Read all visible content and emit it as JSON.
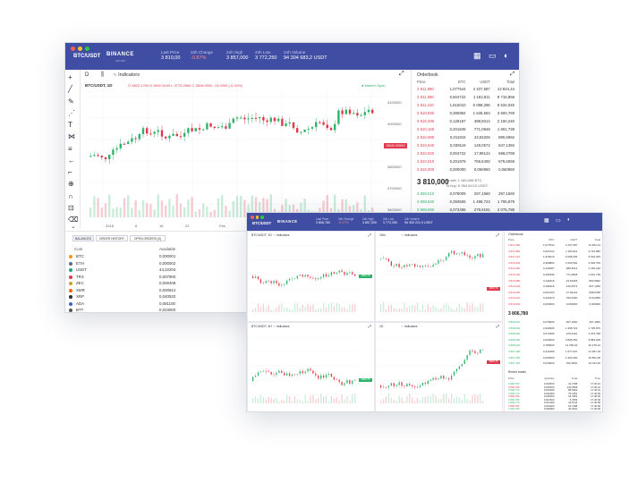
{
  "back": {
    "pair": "BTC/USDT",
    "brand": "BINANCE",
    "brand_sub": "API KEY",
    "stats": [
      {
        "label": "Last Price",
        "value": "3 810,00",
        "neg": false
      },
      {
        "label": "24h Change",
        "value": "-0.87%",
        "neg": true
      },
      {
        "label": "24h High",
        "value": "3 857,000",
        "neg": false
      },
      {
        "label": "24h Low",
        "value": "3 772,250",
        "neg": false
      },
      {
        "label": "24h Volume",
        "value": "94 304 683,2 USDT",
        "neg": false
      }
    ],
    "symbol": "BTC/USDT, 1D",
    "ohlc": "O 3822.1760 H 3841.5100 L 3775.2560 C 3818.0000 -13.0000 (-0.34%)",
    "indicators": "Indicators",
    "interval": "D",
    "market_open": "Market Open",
    "price_axis": [
      "4100000",
      "4000000",
      "3900000",
      "3800000",
      "3700000",
      "3600000"
    ],
    "price_tag": "3818.00000",
    "time_axis": [
      "2018",
      "8",
      "16",
      "22",
      "Feb",
      "5"
    ],
    "orderbook_title": "Orderbook",
    "ob_headers": [
      "Price",
      "BTC",
      "USDT",
      "Total"
    ],
    "asks": [
      [
        "3 811,990",
        "1,077544",
        "4 107,587",
        "13 824,44"
      ],
      [
        "3 811,580",
        "0,604722",
        "1 182,811",
        "9 716,856"
      ],
      [
        "3 811,210",
        "1,615010",
        "6 098,296",
        "8 534,045"
      ],
      [
        "3 810,930",
        "0,380884",
        "1 636,594",
        "3 600,769"
      ],
      [
        "3 810,490",
        "0,128187",
        "488,5014",
        "2 150,240"
      ],
      [
        "3 810,160",
        "0,201845",
        "771,0848",
        "1 661,739"
      ],
      [
        "3 810,080",
        "0,011815",
        "43,53325",
        "890,6892"
      ],
      [
        "3 810,040",
        "0,039119",
        "149,0572",
        "847,1360"
      ],
      [
        "3 810,020",
        "0,004722",
        "17,99124",
        "698,0788"
      ],
      [
        "3 810,010",
        "0,201979",
        "769,5400",
        "679,6059"
      ],
      [
        "3 810,000",
        "0,000000",
        "0,060960",
        "0,060960"
      ]
    ],
    "mid_price": "3 810,000",
    "mid_sub1": "To sell: 1 180,058 BTC",
    "mid_sub2": "To buy: 5 364 613,0 USDT",
    "bids": [
      [
        "3 809,010",
        "0,078009",
        "297,1560",
        "297,1560"
      ],
      [
        "3 808,840",
        "0,393506",
        "1 498,723",
        "1 795,879"
      ],
      [
        "3 808,690",
        "0,073496",
        "279,9191",
        "2 075,798"
      ],
      [
        "3 808,250",
        "0,000000",
        "3 808,250",
        "5 884,048"
      ],
      [
        "3 808,030",
        "3,780000",
        "14 395,20",
        "20 279,24"
      ],
      [
        "3 807,490",
        "0,441989",
        "1 677,937",
        "21 957,18"
      ],
      [
        "3 807,290",
        "0,000000",
        "1 903,900",
        "23 861,08"
      ],
      [
        "3 807,110",
        "0,040000",
        "152,2840",
        "24 013,36"
      ]
    ],
    "tabs": [
      "BALANCES",
      "ORDER HISTORY",
      "OPEN ORDERS (0)"
    ],
    "bal_headers": [
      "Coin",
      "Available"
    ],
    "balances": [
      {
        "coin": "BTC",
        "amount": "0,000001",
        "color": "#f7931a"
      },
      {
        "coin": "ETH",
        "amount": "0,000002",
        "color": "#62688f"
      },
      {
        "coin": "USDT",
        "amount": "44,22204",
        "color": "#26a17b"
      },
      {
        "coin": "TRX",
        "amount": "0,007900",
        "color": "#e0394d"
      },
      {
        "coin": "ZEC",
        "amount": "0,000408",
        "color": "#c9a227"
      },
      {
        "coin": "XMR",
        "amount": "0,000912",
        "color": "#ff6600"
      },
      {
        "coin": "XRP",
        "amount": "0,040520",
        "color": "#2a2e39"
      },
      {
        "coin": "ADA",
        "amount": "0,081100",
        "color": "#3468d1"
      },
      {
        "coin": "BTT",
        "amount": "0,023000",
        "color": "#555555"
      }
    ]
  },
  "front": {
    "pair": "BTC/USDT",
    "brand": "BINANCE",
    "stats": [
      {
        "label": "Last Price",
        "value": "3 806,780"
      },
      {
        "label": "24h Change",
        "value": "-0.97%"
      },
      {
        "label": "24h High",
        "value": "3 857,000"
      },
      {
        "label": "24h Low",
        "value": "3 772,250"
      },
      {
        "label": "24h Volume",
        "value": "94 309 221,9 USDT"
      }
    ],
    "panels": [
      {
        "symbol": "BTC/USDT, 1D",
        "indicators": "Indicators",
        "tag": "3806.78"
      },
      {
        "symbol": "15m",
        "indicators": "Indicators",
        "tag": "3806.78"
      },
      {
        "symbol": "BTC/USDT, 4H",
        "indicators": "Indicators",
        "tag": "3806.78"
      },
      {
        "symbol": "1D",
        "indicators": "Indicators",
        "tag": "3806.78"
      }
    ],
    "orderbook_title": "Orderbook",
    "mid_price": "3 806,780",
    "trades_title": "Recent trades",
    "trade_headers": [
      "Price",
      "Quantity",
      "Total",
      "Time"
    ],
    "trades": [
      [
        "3 806,780",
        "0,010870",
        "41,3798",
        "17:46:10"
      ],
      [
        "3 806,780",
        "0,036870",
        "140,3568",
        "17:46:10"
      ],
      [
        "3 806,770",
        "0,023360",
        "88,9262",
        "17:46:10"
      ],
      [
        "3 806,770",
        "0,020000",
        "76,1354",
        "17:46:09"
      ],
      [
        "3 806,780",
        "0,005200",
        "19,7953",
        "17:46:09"
      ],
      [
        "3 806,780",
        "0,001520",
        "5,7863",
        "17:46:09"
      ],
      [
        "3 806,770",
        "0,011000",
        "41,8744",
        "17:46:08"
      ],
      [
        "3 806,780",
        "0,004400",
        "16,7498",
        "17:46:08"
      ],
      [
        "3 806,780",
        "0,009000",
        "34,2610",
        "17:46:08"
      ],
      [
        "3 806,770",
        "0,020000",
        "76,1354",
        "17:46:07"
      ]
    ]
  }
}
